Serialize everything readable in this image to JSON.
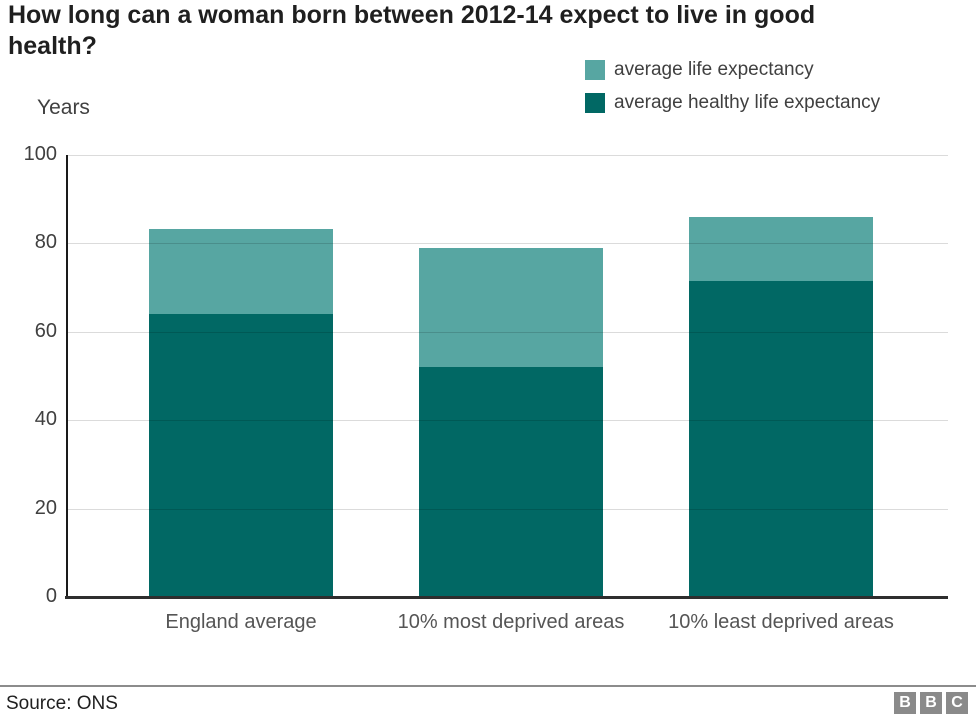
{
  "title": "How long can a woman born between 2012-14 expect to live in good health?",
  "legend": [
    {
      "label": "average life expectancy",
      "color": "#57a6a2"
    },
    {
      "label": "average healthy life expectancy",
      "color": "#016864"
    }
  ],
  "source": "Source: ONS",
  "logo": {
    "letters": [
      "B",
      "B",
      "C"
    ]
  },
  "colors": {
    "life_expectancy": "#57a6a2",
    "healthy_life_expectancy": "#016864",
    "gridline": "rgba(0,0,0,0.14)",
    "axis": "#1a1a1a"
  },
  "chart_data": {
    "type": "bar",
    "subtype": "stacked-overlay",
    "title": "How long can a woman born between 2012-14 expect to live in good health?",
    "ylabel": "Years",
    "xlabel": "",
    "categories": [
      "England average",
      "10% most deprived areas",
      "10% least deprived areas"
    ],
    "series": [
      {
        "name": "average life expectancy",
        "values": [
          83.3,
          79.0,
          86.0
        ],
        "color": "#57a6a2"
      },
      {
        "name": "average healthy life expectancy",
        "values": [
          64.0,
          52.0,
          71.4
        ],
        "color": "#016864"
      }
    ],
    "ylim": [
      0,
      100
    ],
    "yticks": [
      0,
      20,
      40,
      60,
      80,
      100
    ],
    "grid": true,
    "legend_position": "top-right"
  }
}
